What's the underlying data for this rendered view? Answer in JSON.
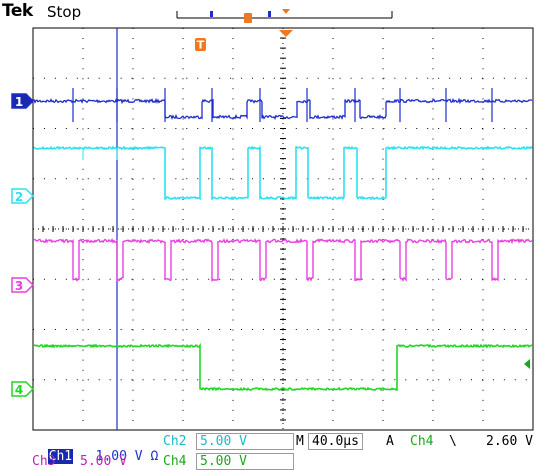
{
  "header": {
    "brand": "Tek",
    "state": "Stop"
  },
  "trigger": {
    "marker_label": "T"
  },
  "colors": {
    "ch1": "#1f2dcc",
    "ch2": "#2ee0f0",
    "ch3": "#e83fe0",
    "ch4": "#22d622",
    "trigger": "#f07820",
    "grid": "#000000"
  },
  "channels": [
    {
      "id": "ch1",
      "marker": "1",
      "color": "#1f2dcc"
    },
    {
      "id": "ch2",
      "marker": "2",
      "color": "#2ee0f0"
    },
    {
      "id": "ch3",
      "marker": "3",
      "color": "#e83fe0"
    },
    {
      "id": "ch4",
      "marker": "4",
      "color": "#22d622"
    }
  ],
  "readouts": {
    "ch1_label": "Ch1",
    "ch1_scale": "1.00 V",
    "ch2_label": "Ch2",
    "ch2_scale": "5.00 V",
    "ch3_label": "Ch3",
    "ch3_scale": "5.00 V",
    "ch4_label": "Ch4",
    "ch4_scale": "5.00 V",
    "timebase_prefix": "M",
    "timebase": "40.0µs",
    "trigger_mode": "A",
    "trigger_source": "Ch4",
    "trigger_level": "2.60 V"
  }
}
